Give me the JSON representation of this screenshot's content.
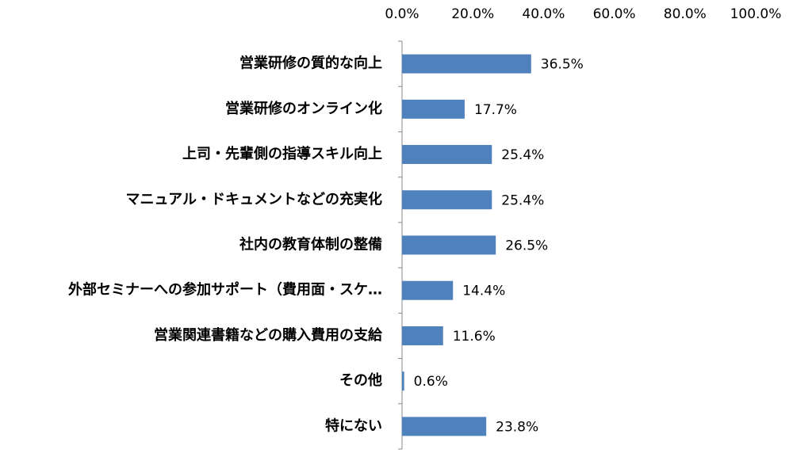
{
  "chart_data": {
    "type": "bar",
    "orientation": "horizontal",
    "categories": [
      "営業研修の質的な向上",
      "営業研修のオンライン化",
      "上司・先輩側の指導スキル向上",
      "マニュアル・ドキュメントなどの充実化",
      "社内の教育体制の整備",
      "外部セミナーへの参加サポート（費用面・スケ…",
      "営業関連書籍などの購入費用の支給",
      "その他",
      "特にない"
    ],
    "values": [
      36.5,
      17.7,
      25.4,
      25.4,
      26.5,
      14.4,
      11.6,
      0.6,
      23.8
    ],
    "value_labels": [
      "36.5%",
      "17.7%",
      "25.4%",
      "25.4%",
      "26.5%",
      "14.4%",
      "11.6%",
      "0.6%",
      "23.8%"
    ],
    "color": "#4f81bd",
    "xlim": [
      0,
      100
    ],
    "xticks": [
      {
        "value": 0,
        "label": "0.0%"
      },
      {
        "value": 20,
        "label": "20.0%"
      },
      {
        "value": 40,
        "label": "40.0%"
      },
      {
        "value": 60,
        "label": "60.0%"
      },
      {
        "value": 80,
        "label": "80.0%"
      },
      {
        "value": 100,
        "label": "100.0%"
      }
    ],
    "grid": false
  }
}
